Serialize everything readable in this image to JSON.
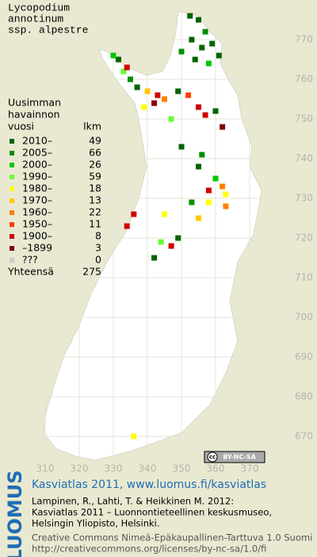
{
  "title": [
    "Lycopodium",
    "annotinum",
    "ssp. alpestre"
  ],
  "legend": {
    "header": [
      "Uusimman",
      "havainnon",
      "vuosi",
      "lkm"
    ],
    "items": [
      {
        "label": "2010–",
        "count": 49,
        "color": "#006400"
      },
      {
        "label": "2005–",
        "count": 66,
        "color": "#009000"
      },
      {
        "label": "2000–",
        "count": 26,
        "color": "#00c800"
      },
      {
        "label": "1990–",
        "count": 59,
        "color": "#66ff33"
      },
      {
        "label": "1980–",
        "count": 18,
        "color": "#ffff00"
      },
      {
        "label": "1970–",
        "count": 13,
        "color": "#ffc800"
      },
      {
        "label": "1960–",
        "count": 22,
        "color": "#ff8000"
      },
      {
        "label": "1950–",
        "count": 11,
        "color": "#ff4000"
      },
      {
        "label": "1900–",
        "count": 8,
        "color": "#d00000"
      },
      {
        "label": "–1899",
        "count": 3,
        "color": "#800000"
      },
      {
        "label": "???",
        "count": 0,
        "color": "#cccccc"
      }
    ],
    "total_label": "Yhteensä",
    "total": 275
  },
  "map": {
    "xticks": [
      310,
      320,
      330,
      340,
      350,
      360,
      370
    ],
    "yticks": [
      670,
      680,
      690,
      700,
      710,
      720,
      730,
      740,
      750,
      760,
      770
    ]
  },
  "observations": [
    [
      352.5,
      776,
      0
    ],
    [
      355,
      775,
      0
    ],
    [
      357,
      772,
      1
    ],
    [
      353,
      770,
      0
    ],
    [
      356,
      768,
      0
    ],
    [
      359,
      769,
      0
    ],
    [
      354,
      765,
      0
    ],
    [
      358,
      764,
      2
    ],
    [
      361,
      766,
      0
    ],
    [
      350,
      767,
      1
    ],
    [
      331.5,
      765,
      0
    ],
    [
      333,
      762,
      3
    ],
    [
      330,
      766,
      2
    ],
    [
      335,
      760,
      1
    ],
    [
      334,
      763,
      8
    ],
    [
      337,
      758,
      0
    ],
    [
      340,
      757,
      5
    ],
    [
      343,
      756,
      8
    ],
    [
      342,
      754,
      9
    ],
    [
      345,
      755,
      6
    ],
    [
      349,
      757,
      0
    ],
    [
      352,
      756,
      7
    ],
    [
      355,
      753,
      8
    ],
    [
      357,
      751,
      8
    ],
    [
      360,
      752,
      0
    ],
    [
      362,
      748,
      9
    ],
    [
      347,
      750,
      3
    ],
    [
      339,
      753,
      4
    ],
    [
      350,
      743,
      0
    ],
    [
      356,
      741,
      1
    ],
    [
      355,
      738,
      0
    ],
    [
      360,
      735,
      2
    ],
    [
      362,
      733,
      6
    ],
    [
      358,
      732,
      8
    ],
    [
      363,
      728,
      6
    ],
    [
      358,
      729,
      4
    ],
    [
      353,
      729,
      1
    ],
    [
      345,
      726,
      4
    ],
    [
      349,
      720,
      0
    ],
    [
      344,
      719,
      3
    ],
    [
      347,
      718,
      8
    ],
    [
      342,
      715,
      0
    ],
    [
      336,
      726,
      8
    ],
    [
      334,
      723,
      8
    ],
    [
      355,
      725,
      5
    ],
    [
      363,
      731,
      4
    ],
    [
      336,
      670,
      4
    ]
  ],
  "cc_badge": {
    "icon": "cc",
    "text": "BY-NC-SA"
  },
  "footer": {
    "logo": "LUOMUS",
    "heading": "Kasviatlas 2011, www.luomus.fi/kasviatlas",
    "citation": [
      "Lampinen, R., Lahti, T. & Heikkinen M. 2012:",
      "Kasviatlas 2011 – Luonnontieteellinen keskusmuseo,",
      "Helsingin Yliopisto, Helsinki."
    ],
    "license": [
      "Creative Commons Nimeä-Epäkaupallinen-Tarttuva 1.0 Suomi",
      "http://creativecommons.org/licenses/by-nc-sa/1.0/fi"
    ]
  }
}
